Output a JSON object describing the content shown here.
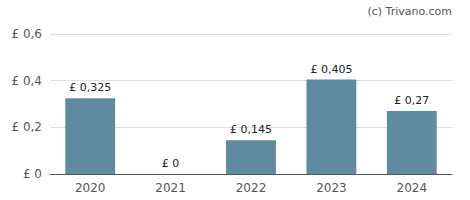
{
  "chart_data": {
    "type": "bar",
    "categories": [
      "2020",
      "2021",
      "2022",
      "2023",
      "2024"
    ],
    "values": [
      0.325,
      0.0,
      0.145,
      0.405,
      0.27
    ],
    "value_labels": [
      "£ 0,325",
      "£ 0",
      "£ 0,145",
      "£ 0,405",
      "£ 0,27"
    ],
    "data_labels": true,
    "color": "#5f8a9f",
    "ylim": [
      0,
      0.6
    ],
    "yticks": [
      {
        "value": 0.0,
        "label": "£ 0"
      },
      {
        "value": 0.2,
        "label": "£ 0,2"
      },
      {
        "value": 0.4,
        "label": "£ 0,4"
      },
      {
        "value": 0.6,
        "label": "£ 0,6"
      }
    ],
    "grid": true,
    "annotation": "(c) Trivano.com"
  }
}
